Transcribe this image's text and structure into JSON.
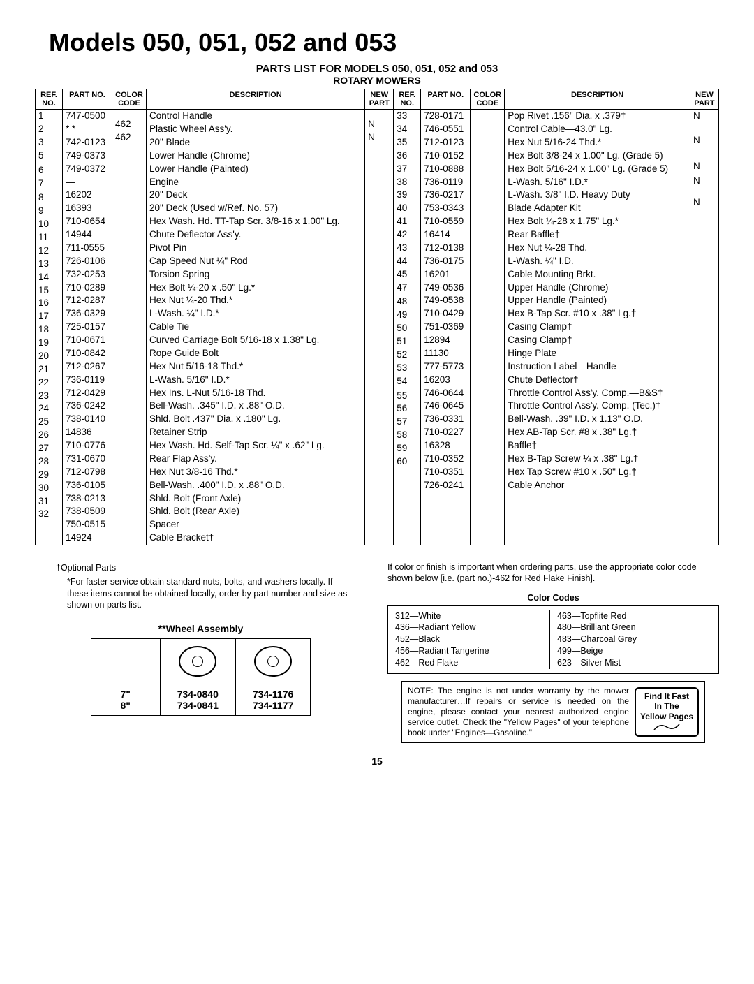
{
  "title": "Models 050, 051, 052 and 053",
  "sub1": "PARTS LIST FOR MODELS 050, 051, 052 and 053",
  "sub2": "ROTARY MOWERS",
  "headers": {
    "ref": "REF. NO.",
    "part": "PART NO.",
    "color": "COLOR CODE",
    "desc": "DESCRIPTION",
    "newpart": "NEW PART"
  },
  "left": [
    {
      "r": "1",
      "p": "747-0500",
      "c": "",
      "d": "Control Handle",
      "n": ""
    },
    {
      "r": "2",
      "p": "* *",
      "c": "",
      "d": "Plastic Wheel Ass'y.",
      "n": ""
    },
    {
      "r": "3",
      "p": "742-0123",
      "c": "",
      "d": "20\" Blade",
      "n": ""
    },
    {
      "r": "5",
      "p": "749-0373",
      "c": "",
      "d": "Lower Handle (Chrome)",
      "n": ""
    },
    {
      "r": "",
      "p": "749-0372",
      "c": "",
      "d": "Lower Handle (Painted)",
      "n": ""
    },
    {
      "r": "6",
      "p": "—",
      "c": "",
      "d": "Engine",
      "n": ""
    },
    {
      "r": "7",
      "p": "16202",
      "c": "462",
      "d": "20\" Deck",
      "n": "N"
    },
    {
      "r": "",
      "p": "16393",
      "c": "462",
      "d": "20\" Deck (Used w/Ref. No. 57)",
      "n": "N"
    },
    {
      "r": "8",
      "p": "710-0654",
      "c": "",
      "d": "Hex Wash. Hd. TT-Tap Scr. 3/8-16 x 1.00\" Lg.",
      "n": ""
    },
    {
      "r": "9",
      "p": "14944",
      "c": "",
      "d": "Chute Deflector Ass'y.",
      "n": ""
    },
    {
      "r": "10",
      "p": "711-0555",
      "c": "",
      "d": "Pivot Pin",
      "n": ""
    },
    {
      "r": "11",
      "p": "726-0106",
      "c": "",
      "d": "Cap Speed Nut ¼\" Rod",
      "n": ""
    },
    {
      "r": "12",
      "p": "732-0253",
      "c": "",
      "d": "Torsion Spring",
      "n": ""
    },
    {
      "r": "13",
      "p": "710-0289",
      "c": "",
      "d": "Hex Bolt ¼-20 x .50\" Lg.*",
      "n": ""
    },
    {
      "r": "14",
      "p": "712-0287",
      "c": "",
      "d": "Hex Nut ¼-20 Thd.*",
      "n": ""
    },
    {
      "r": "15",
      "p": "736-0329",
      "c": "",
      "d": "L-Wash. ¼\" I.D.*",
      "n": ""
    },
    {
      "r": "16",
      "p": "725-0157",
      "c": "",
      "d": "Cable Tie",
      "n": ""
    },
    {
      "r": "17",
      "p": "710-0671",
      "c": "",
      "d": "Curved Carriage Bolt 5/16-18 x 1.38\" Lg.",
      "n": ""
    },
    {
      "r": "18",
      "p": "710-0842",
      "c": "",
      "d": "Rope Guide Bolt",
      "n": ""
    },
    {
      "r": "19",
      "p": "712-0267",
      "c": "",
      "d": "Hex Nut 5/16-18 Thd.*",
      "n": ""
    },
    {
      "r": "20",
      "p": "736-0119",
      "c": "",
      "d": "L-Wash. 5/16\" I.D.*",
      "n": ""
    },
    {
      "r": "21",
      "p": "712-0429",
      "c": "",
      "d": "Hex Ins. L-Nut 5/16-18 Thd.",
      "n": ""
    },
    {
      "r": "22",
      "p": "736-0242",
      "c": "",
      "d": "Bell-Wash. .345\" I.D. x .88\" O.D.",
      "n": ""
    },
    {
      "r": "23",
      "p": "738-0140",
      "c": "",
      "d": "Shld. Bolt .437\" Dia. x .180\" Lg.",
      "n": ""
    },
    {
      "r": "24",
      "p": "14836",
      "c": "",
      "d": "Retainer Strip",
      "n": ""
    },
    {
      "r": "25",
      "p": "710-0776",
      "c": "",
      "d": "Hex Wash. Hd. Self-Tap Scr. ¼\" x .62\" Lg.",
      "n": ""
    },
    {
      "r": "26",
      "p": "731-0670",
      "c": "",
      "d": "Rear Flap Ass'y.",
      "n": ""
    },
    {
      "r": "27",
      "p": "712-0798",
      "c": "",
      "d": "Hex Nut 3/8-16 Thd.*",
      "n": ""
    },
    {
      "r": "28",
      "p": "736-0105",
      "c": "",
      "d": "Bell-Wash. .400\" I.D. x .88\" O.D.",
      "n": ""
    },
    {
      "r": "29",
      "p": "738-0213",
      "c": "",
      "d": "Shld. Bolt (Front Axle)",
      "n": ""
    },
    {
      "r": "30",
      "p": "738-0509",
      "c": "",
      "d": "Shld. Bolt (Rear Axle)",
      "n": ""
    },
    {
      "r": "31",
      "p": "750-0515",
      "c": "",
      "d": "Spacer",
      "n": ""
    },
    {
      "r": "32",
      "p": "14924",
      "c": "",
      "d": "Cable Bracket†",
      "n": ""
    }
  ],
  "right": [
    {
      "r": "33",
      "p": "728-0171",
      "c": "",
      "d": "Pop Rivet .156\" Dia. x .379†",
      "n": "N"
    },
    {
      "r": "34",
      "p": "746-0551",
      "c": "",
      "d": "Control Cable—43.0\" Lg.",
      "n": ""
    },
    {
      "r": "35",
      "p": "712-0123",
      "c": "",
      "d": "Hex Nut 5/16-24 Thd.*",
      "n": ""
    },
    {
      "r": "36",
      "p": "710-0152",
      "c": "",
      "d": "Hex Bolt 3/8-24 x 1.00\" Lg. (Grade 5)",
      "n": ""
    },
    {
      "r": "37",
      "p": "710-0888",
      "c": "",
      "d": "Hex Bolt 5/16-24 x 1.00\" Lg. (Grade 5)",
      "n": ""
    },
    {
      "r": "38",
      "p": "736-0119",
      "c": "",
      "d": "L-Wash. 5/16\" I.D.*",
      "n": ""
    },
    {
      "r": "39",
      "p": "736-0217",
      "c": "",
      "d": "L-Wash. 3/8\" I.D. Heavy Duty",
      "n": ""
    },
    {
      "r": "40",
      "p": "753-0343",
      "c": "",
      "d": "Blade Adapter Kit",
      "n": ""
    },
    {
      "r": "41",
      "p": "710-0559",
      "c": "",
      "d": "Hex Bolt ¼-28 x 1.75\" Lg.*",
      "n": ""
    },
    {
      "r": "42",
      "p": "16414",
      "c": "",
      "d": "Rear Baffle†",
      "n": "N"
    },
    {
      "r": "43",
      "p": "712-0138",
      "c": "",
      "d": "Hex Nut ¼-28 Thd.",
      "n": ""
    },
    {
      "r": "44",
      "p": "736-0175",
      "c": "",
      "d": "L-Wash. ¼\" I.D.",
      "n": ""
    },
    {
      "r": "45",
      "p": "16201",
      "c": "",
      "d": "Cable Mounting Brkt.",
      "n": ""
    },
    {
      "r": "47",
      "p": "749-0536",
      "c": "",
      "d": "Upper Handle (Chrome)",
      "n": ""
    },
    {
      "r": "",
      "p": "749-0538",
      "c": "",
      "d": "Upper Handle (Painted)",
      "n": ""
    },
    {
      "r": "48",
      "p": "710-0429",
      "c": "",
      "d": "Hex B-Tap Scr. #10 x .38\" Lg.†",
      "n": ""
    },
    {
      "r": "49",
      "p": "751-0369",
      "c": "",
      "d": "Casing Clamp†",
      "n": ""
    },
    {
      "r": "50",
      "p": "12894",
      "c": "",
      "d": "Casing Clamp†",
      "n": ""
    },
    {
      "r": "51",
      "p": "11130",
      "c": "",
      "d": "Hinge Plate",
      "n": ""
    },
    {
      "r": "52",
      "p": "777-5773",
      "c": "",
      "d": "Instruction Label—Handle",
      "n": "N"
    },
    {
      "r": "53",
      "p": "16203",
      "c": "",
      "d": "Chute Deflector†",
      "n": ""
    },
    {
      "r": "54",
      "p": "746-0644",
      "c": "",
      "d": "Throttle Control Ass'y. Comp.—B&S†",
      "n": "N"
    },
    {
      "r": "",
      "p": "746-0645",
      "c": "",
      "d": "Throttle Control Ass'y. Comp. (Tec.)†",
      "n": ""
    },
    {
      "r": "55",
      "p": "736-0331",
      "c": "",
      "d": "Bell-Wash. .39\" I.D. x 1.13\" O.D.",
      "n": ""
    },
    {
      "r": "56",
      "p": "710-0227",
      "c": "",
      "d": "Hex AB-Tap Scr. #8 x .38\" Lg.†",
      "n": ""
    },
    {
      "r": "57",
      "p": "16328",
      "c": "",
      "d": "Baffle†",
      "n": ""
    },
    {
      "r": "58",
      "p": "710-0352",
      "c": "",
      "d": "Hex B-Tap Screw ¼ x .38\" Lg.†",
      "n": ""
    },
    {
      "r": "59",
      "p": "710-0351",
      "c": "",
      "d": "Hex Tap Screw #10 x .50\" Lg.†",
      "n": ""
    },
    {
      "r": "60",
      "p": "726-0241",
      "c": "",
      "d": "Cable Anchor",
      "n": "N"
    }
  ],
  "foot_optional": "†Optional Parts",
  "foot_star": "*For faster service obtain standard nuts, bolts, and washers locally. If these items cannot be obtained locally, order by part number and size as shown on parts list.",
  "color_note": "If color or finish is important when ordering parts, use the appropriate color code shown below [i.e. (part no.)-462 for Red Flake Finish].",
  "color_head": "Color Codes",
  "colors_left": [
    "312—White",
    "436—Radiant Yellow",
    "452—Black",
    "456—Radiant Tangerine",
    "462—Red Flake"
  ],
  "colors_right": [
    "463—Topflite Red",
    "480—Brilliant Green",
    "483—Charcoal Grey",
    "499—Beige",
    "623—Silver Mist"
  ],
  "note": "NOTE: The engine is not under warranty by the mower manufacturer…If repairs or service is needed on the engine, please contact your nearest authorized engine service outlet. Check the \"Yellow Pages\" of your telephone book under \"Engines—Gasoline.\"",
  "findfast1": "Find It Fast",
  "findfast2": "In The",
  "findfast3": "Yellow Pages",
  "wheel_head": "**Wheel Assembly",
  "wheel": {
    "s1": "7\"",
    "s2": "8\"",
    "a1": "734-0840",
    "a2": "734-0841",
    "b1": "734-1176",
    "b2": "734-1177"
  },
  "pagenum": "15"
}
